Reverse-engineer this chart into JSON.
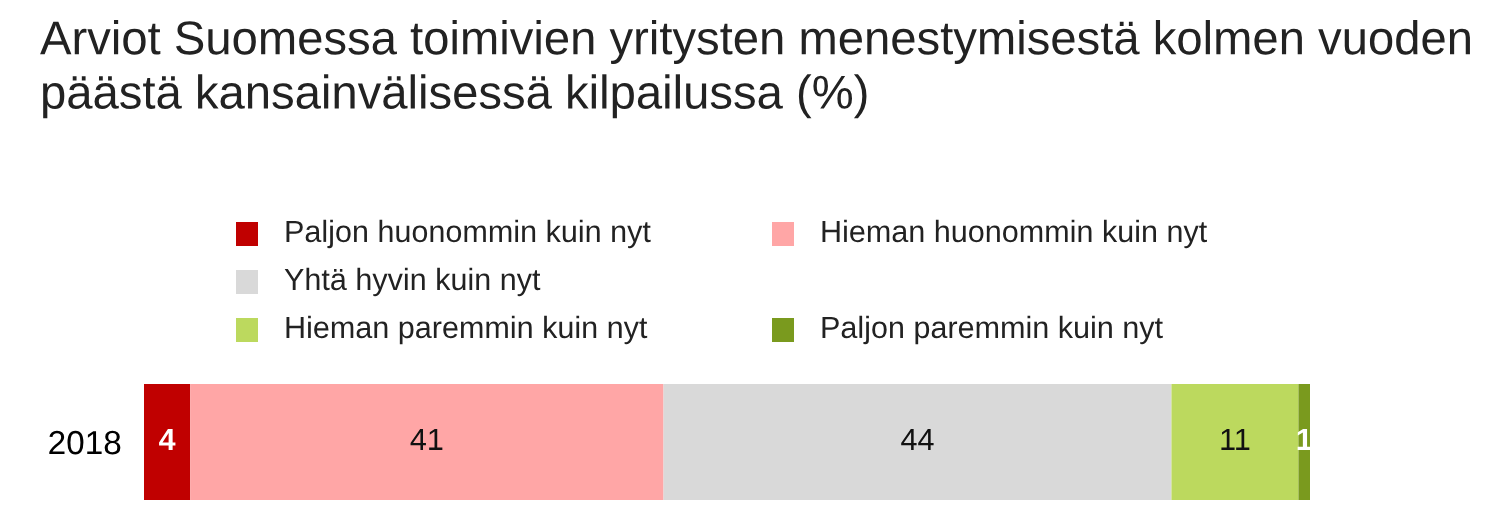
{
  "chart_data": {
    "type": "bar",
    "orientation": "horizontal",
    "stacked": true,
    "title": "Arviot Suomessa toimivien yritysten menestymisestä kolmen vuoden päästä kansainvälisessä kilpailussa (%)",
    "categories": [
      "2018"
    ],
    "series": [
      {
        "name": "Paljon huonommin kuin nyt",
        "color": "#c00000",
        "values": [
          4
        ]
      },
      {
        "name": "Hieman huonommin kuin nyt",
        "color": "#ffa6a6",
        "values": [
          41
        ]
      },
      {
        "name": "Yhtä hyvin kuin nyt",
        "color": "#d9d9d9",
        "values": [
          44
        ]
      },
      {
        "name": "Hieman paremmin kuin nyt",
        "color": "#bcd95e",
        "values": [
          11
        ]
      },
      {
        "name": "Paljon paremmin kuin nyt",
        "color": "#7a9a1e",
        "values": [
          1
        ]
      }
    ],
    "data_labels": true,
    "legend": "top",
    "grid": false
  }
}
